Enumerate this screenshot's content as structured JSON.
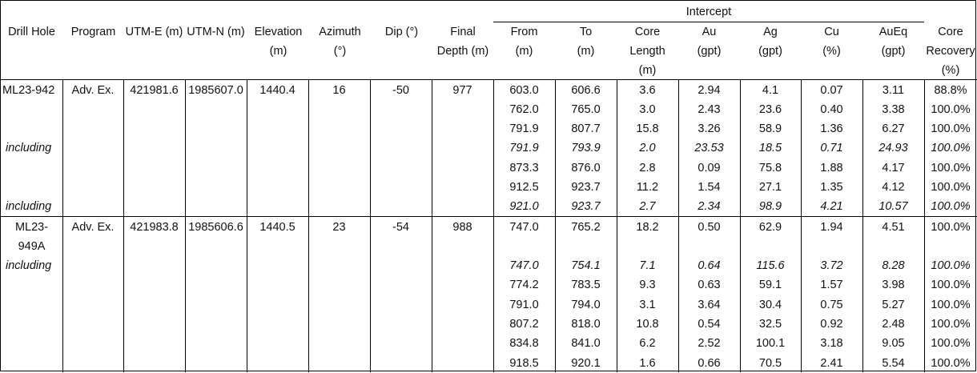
{
  "header": {
    "intercept_group": "Intercept",
    "drill_hole": "Drill Hole",
    "program": "Program",
    "utm_e": "UTM-E (m)",
    "utm_n": "UTM-N (m)",
    "elevation": [
      "Elevation",
      "(m)"
    ],
    "azimuth": [
      "Azimuth",
      "(°)"
    ],
    "dip": "Dip (°)",
    "final_depth": [
      "Final",
      "Depth (m)"
    ],
    "from": [
      "From",
      "(m)"
    ],
    "to": [
      "To",
      "(m)"
    ],
    "core_length": [
      "Core",
      "Length",
      "(m)"
    ],
    "au": [
      "Au",
      "(gpt)"
    ],
    "ag": [
      "Ag",
      "(gpt)"
    ],
    "cu": [
      "Cu",
      "(%)"
    ],
    "aueq": [
      "AuEq",
      "(gpt)"
    ],
    "core_recovery": [
      "Core",
      "Recovery",
      "(%)"
    ]
  },
  "holes": [
    {
      "hole": "ML23-942",
      "program": "Adv. Ex.",
      "utm_e": "421981.6",
      "utm_n": "1985607.0",
      "elevation": "1440.4",
      "azimuth": "16",
      "dip": "-50",
      "final_depth": "977",
      "rows": [
        {
          "label": "",
          "from": "603.0",
          "to": "606.6",
          "length": "3.6",
          "au": "2.94",
          "ag": "4.1",
          "cu": "0.07",
          "aueq": "3.11",
          "rec": "88.8%"
        },
        {
          "label": "",
          "from": "762.0",
          "to": "765.0",
          "length": "3.0",
          "au": "2.43",
          "ag": "23.6",
          "cu": "0.40",
          "aueq": "3.38",
          "rec": "100.0%"
        },
        {
          "label": "",
          "from": "791.9",
          "to": "807.7",
          "length": "15.8",
          "au": "3.26",
          "ag": "58.9",
          "cu": "1.36",
          "aueq": "6.27",
          "rec": "100.0%"
        },
        {
          "label": "including",
          "from": "791.9",
          "to": "793.9",
          "length": "2.0",
          "au": "23.53",
          "ag": "18.5",
          "cu": "0.71",
          "aueq": "24.93",
          "rec": "100.0%"
        },
        {
          "label": "",
          "from": "873.3",
          "to": "876.0",
          "length": "2.8",
          "au": "0.09",
          "ag": "75.8",
          "cu": "1.88",
          "aueq": "4.17",
          "rec": "100.0%"
        },
        {
          "label": "",
          "from": "912.5",
          "to": "923.7",
          "length": "11.2",
          "au": "1.54",
          "ag": "27.1",
          "cu": "1.35",
          "aueq": "4.12",
          "rec": "100.0%"
        },
        {
          "label": "including",
          "from": "921.0",
          "to": "923.7",
          "length": "2.7",
          "au": "2.34",
          "ag": "98.9",
          "cu": "4.21",
          "aueq": "10.57",
          "rec": "100.0%"
        }
      ]
    },
    {
      "hole": [
        "ML23-",
        "949A"
      ],
      "program": "Adv. Ex.",
      "utm_e": "421983.8",
      "utm_n": "1985606.6",
      "elevation": "1440.5",
      "azimuth": "23",
      "dip": "-54",
      "final_depth": "988",
      "rows": [
        {
          "label": "",
          "from": "747.0",
          "to": "765.2",
          "length": "18.2",
          "au": "0.50",
          "ag": "62.9",
          "cu": "1.94",
          "aueq": "4.51",
          "rec": "100.0%"
        },
        {
          "label": "including",
          "from": "747.0",
          "to": "754.1",
          "length": "7.1",
          "au": "0.64",
          "ag": "115.6",
          "cu": "3.72",
          "aueq": "8.28",
          "rec": "100.0%"
        },
        {
          "label": "",
          "from": "774.2",
          "to": "783.5",
          "length": "9.3",
          "au": "0.63",
          "ag": "59.1",
          "cu": "1.57",
          "aueq": "3.98",
          "rec": "100.0%"
        },
        {
          "label": "",
          "from": "791.0",
          "to": "794.0",
          "length": "3.1",
          "au": "3.64",
          "ag": "30.4",
          "cu": "0.75",
          "aueq": "5.27",
          "rec": "100.0%"
        },
        {
          "label": "",
          "from": "807.2",
          "to": "818.0",
          "length": "10.8",
          "au": "0.54",
          "ag": "32.5",
          "cu": "0.92",
          "aueq": "2.48",
          "rec": "100.0%"
        },
        {
          "label": "",
          "from": "834.8",
          "to": "841.0",
          "length": "6.2",
          "au": "2.52",
          "ag": "100.1",
          "cu": "3.18",
          "aueq": "9.05",
          "rec": "100.0%"
        },
        {
          "label": "",
          "from": "918.5",
          "to": "920.1",
          "length": "1.6",
          "au": "0.66",
          "ag": "70.5",
          "cu": "2.41",
          "aueq": "5.54",
          "rec": "100.0%"
        }
      ]
    }
  ]
}
